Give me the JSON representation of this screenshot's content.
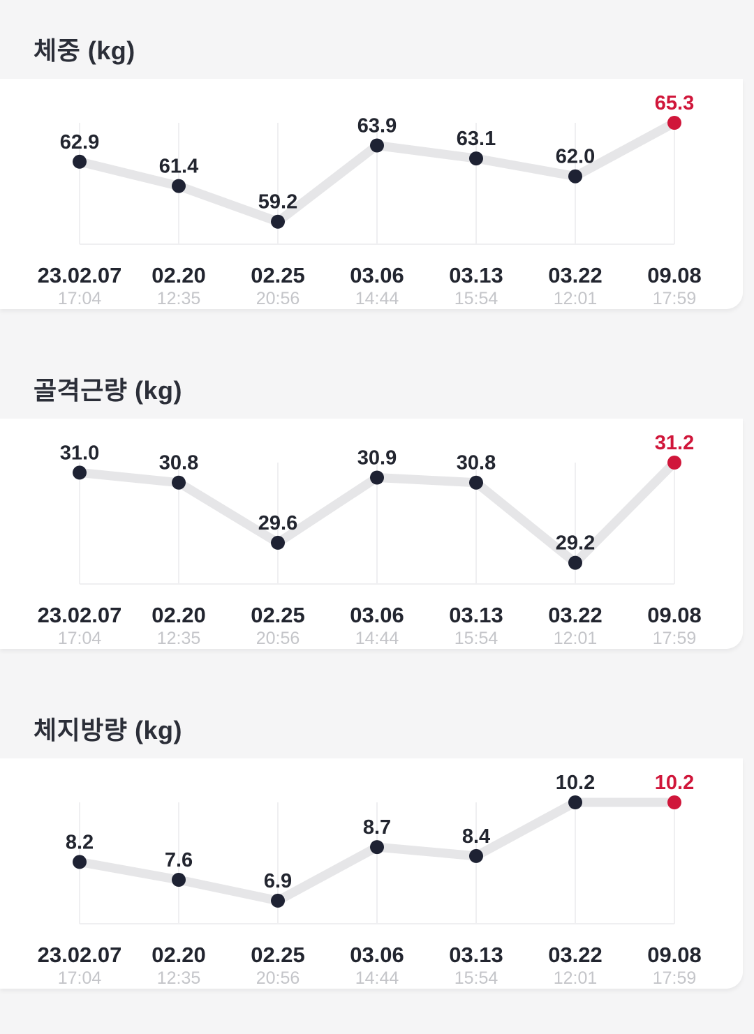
{
  "colors": {
    "dot": "#1e2233",
    "latest": "#d0163a",
    "line": "#e6e6e8"
  },
  "x_axis": {
    "dates": [
      "23.02.07",
      "02.20",
      "02.25",
      "03.06",
      "03.13",
      "03.22",
      "09.08"
    ],
    "times": [
      "17:04",
      "12:35",
      "20:56",
      "14:44",
      "15:54",
      "12:01",
      "17:59"
    ]
  },
  "chart_data": [
    {
      "type": "line",
      "title": "체중 (kg)",
      "categories": [
        "23.02.07",
        "02.20",
        "02.25",
        "03.06",
        "03.13",
        "03.22",
        "09.08"
      ],
      "values": [
        62.9,
        61.4,
        59.2,
        63.9,
        63.1,
        62.0,
        65.3
      ],
      "value_labels": [
        "62.9",
        "61.4",
        "59.2",
        "63.9",
        "63.1",
        "62.0",
        "65.3"
      ],
      "ylim": [
        58.5,
        65.3
      ],
      "grid": "vertical",
      "highlight_last": true
    },
    {
      "type": "line",
      "title": "골격근량 (kg)",
      "categories": [
        "23.02.07",
        "02.20",
        "02.25",
        "03.06",
        "03.13",
        "03.22",
        "09.08"
      ],
      "values": [
        31.0,
        30.8,
        29.6,
        30.9,
        30.8,
        29.2,
        31.2
      ],
      "value_labels": [
        "31.0",
        "30.8",
        "29.6",
        "30.9",
        "30.8",
        "29.2",
        "31.2"
      ],
      "ylim": [
        29.0,
        31.2
      ],
      "grid": "vertical",
      "highlight_last": true
    },
    {
      "type": "line",
      "title": "체지방량 (kg)",
      "categories": [
        "23.02.07",
        "02.20",
        "02.25",
        "03.06",
        "03.13",
        "03.22",
        "09.08"
      ],
      "values": [
        8.2,
        7.6,
        6.9,
        8.7,
        8.4,
        10.2,
        10.2
      ],
      "value_labels": [
        "8.2",
        "7.6",
        "6.9",
        "8.7",
        "8.4",
        "10.2",
        "10.2"
      ],
      "ylim": [
        6.5,
        10.2
      ],
      "grid": "vertical",
      "highlight_last": true
    }
  ]
}
